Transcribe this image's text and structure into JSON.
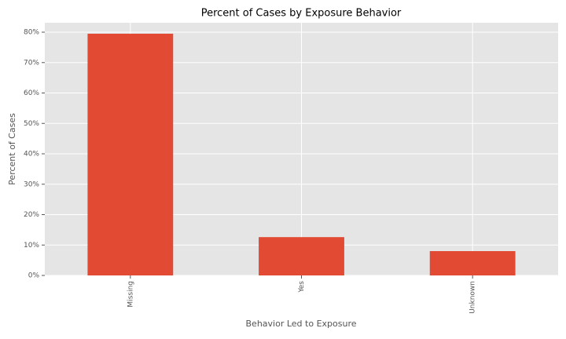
{
  "chart_data": {
    "type": "bar",
    "title": "Percent of Cases by Exposure Behavior",
    "x_label": "Behavior Led to Exposure",
    "y_label": "Percent of Cases",
    "categories": [
      "Missing",
      "Yes",
      "Unknown"
    ],
    "values": [
      79.5,
      12.6,
      8.0
    ],
    "color": "#e24a33",
    "ylim": [
      0,
      83.1
    ],
    "yticks": [
      {
        "value": 0,
        "label": "0%"
      },
      {
        "value": 10,
        "label": "10%"
      },
      {
        "value": 20,
        "label": "20%"
      },
      {
        "value": 30,
        "label": "30%"
      },
      {
        "value": 40,
        "label": "40%"
      },
      {
        "value": 50,
        "label": "50%"
      },
      {
        "value": 60,
        "label": "60%"
      },
      {
        "value": 70,
        "label": "70%"
      },
      {
        "value": 80,
        "label": "80%"
      }
    ],
    "grid": true
  }
}
